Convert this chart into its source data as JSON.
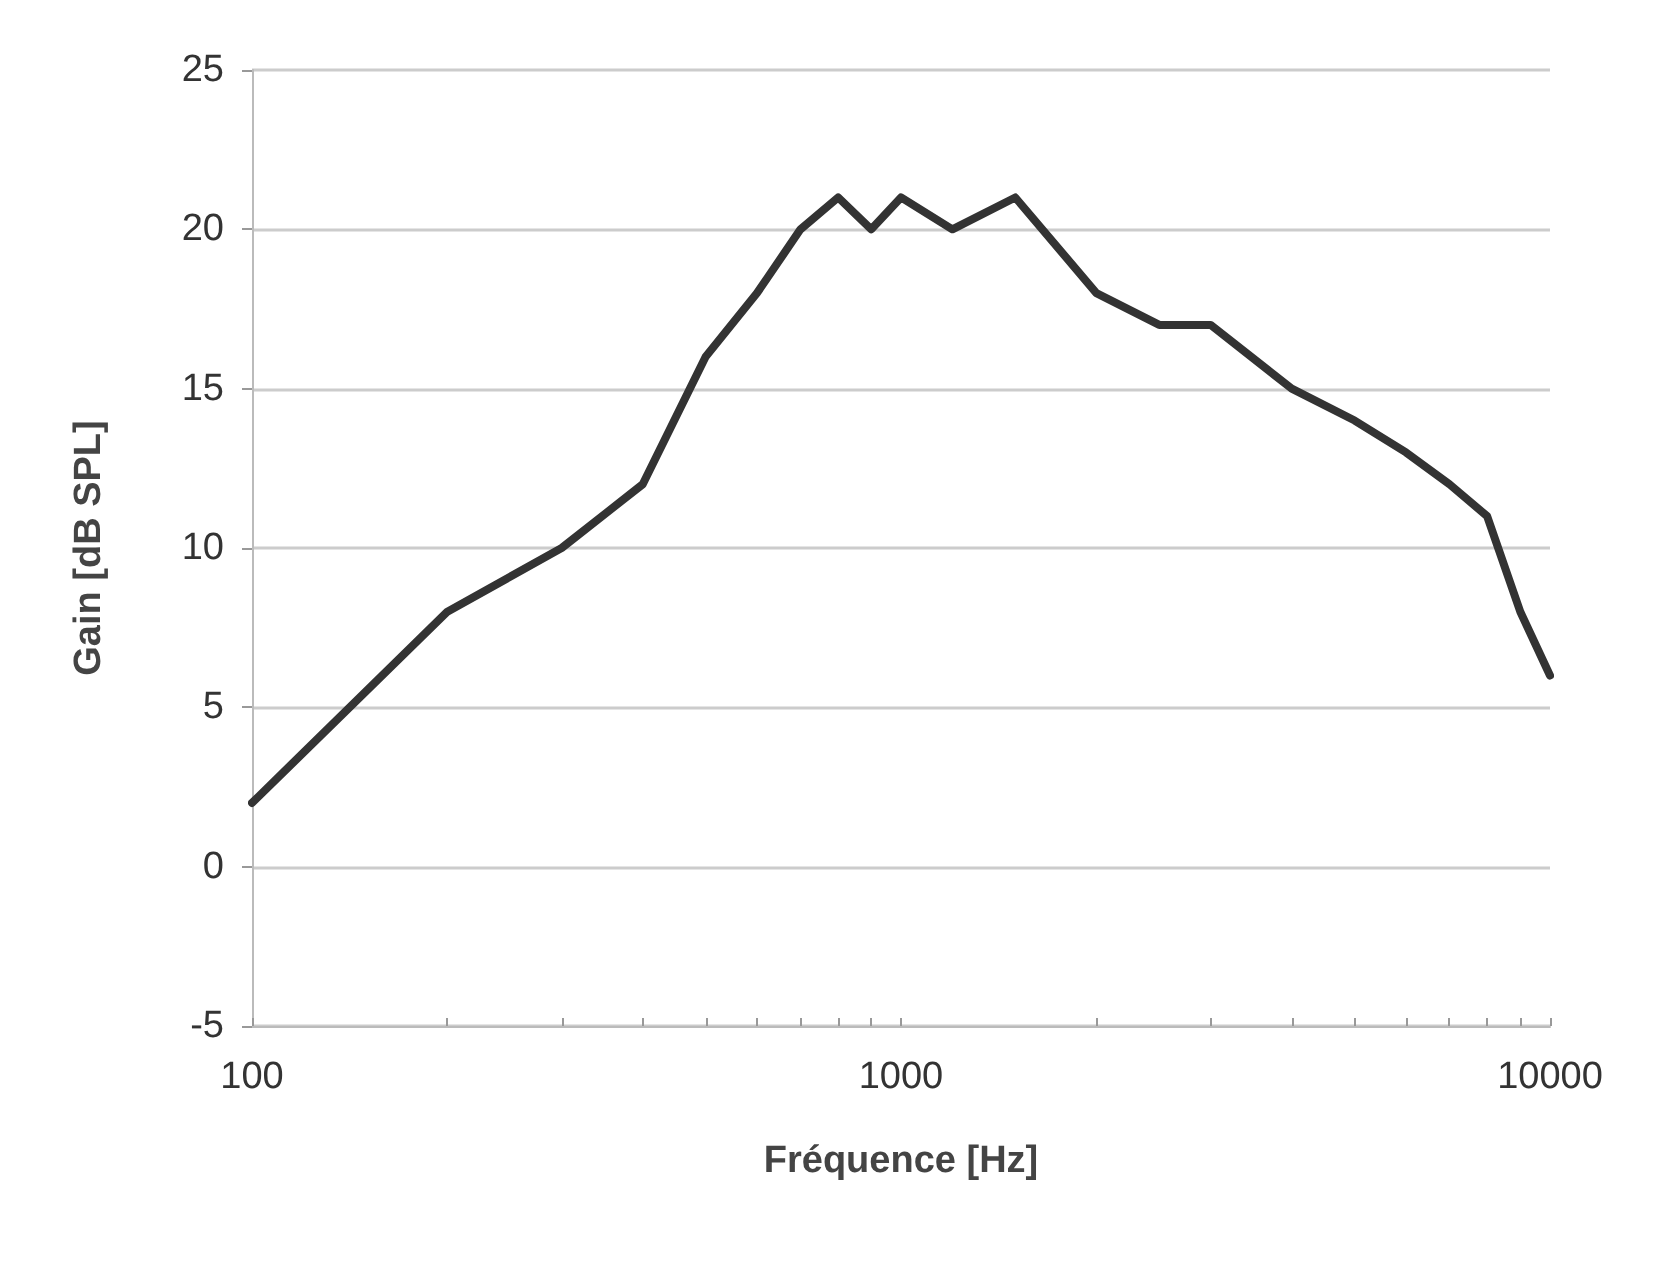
{
  "chart_data": {
    "type": "line",
    "xlabel": "Fréquence [Hz]",
    "ylabel": "Gain [dB SPL]",
    "x": [
      100,
      200,
      300,
      400,
      500,
      600,
      700,
      800,
      900,
      1000,
      1200,
      1500,
      2000,
      2500,
      3000,
      4000,
      5000,
      6000,
      7000,
      8000,
      9000,
      10000
    ],
    "series": [
      {
        "color": "#333333",
        "values": [
          2,
          8,
          10,
          12,
          16,
          18,
          20,
          21,
          20,
          21,
          20,
          21,
          18,
          17,
          17,
          15,
          14,
          13,
          12,
          11,
          8,
          6
        ]
      }
    ],
    "log": "x",
    "xlim": [
      100,
      10000
    ],
    "xticks": [
      100,
      {
        "value": 200,
        "label": null
      },
      {
        "value": 300,
        "label": null
      },
      {
        "value": 400,
        "label": null
      },
      {
        "value": 500,
        "label": null
      },
      {
        "value": 600,
        "label": null
      },
      {
        "value": 700,
        "label": null
      },
      {
        "value": 800,
        "label": null
      },
      {
        "value": 900,
        "label": null
      },
      1000,
      {
        "value": 2000,
        "label": null
      },
      {
        "value": 3000,
        "label": null
      },
      {
        "value": 4000,
        "label": null
      },
      {
        "value": 5000,
        "label": null
      },
      {
        "value": 6000,
        "label": null
      },
      {
        "value": 7000,
        "label": null
      },
      {
        "value": 8000,
        "label": null
      },
      {
        "value": 9000,
        "label": null
      },
      10000
    ],
    "ylim": [
      -5,
      25
    ],
    "yticks": [
      -5,
      0,
      5,
      10,
      15,
      20,
      25
    ],
    "grid": "y",
    "marker": "none",
    "line_style": "solid"
  }
}
